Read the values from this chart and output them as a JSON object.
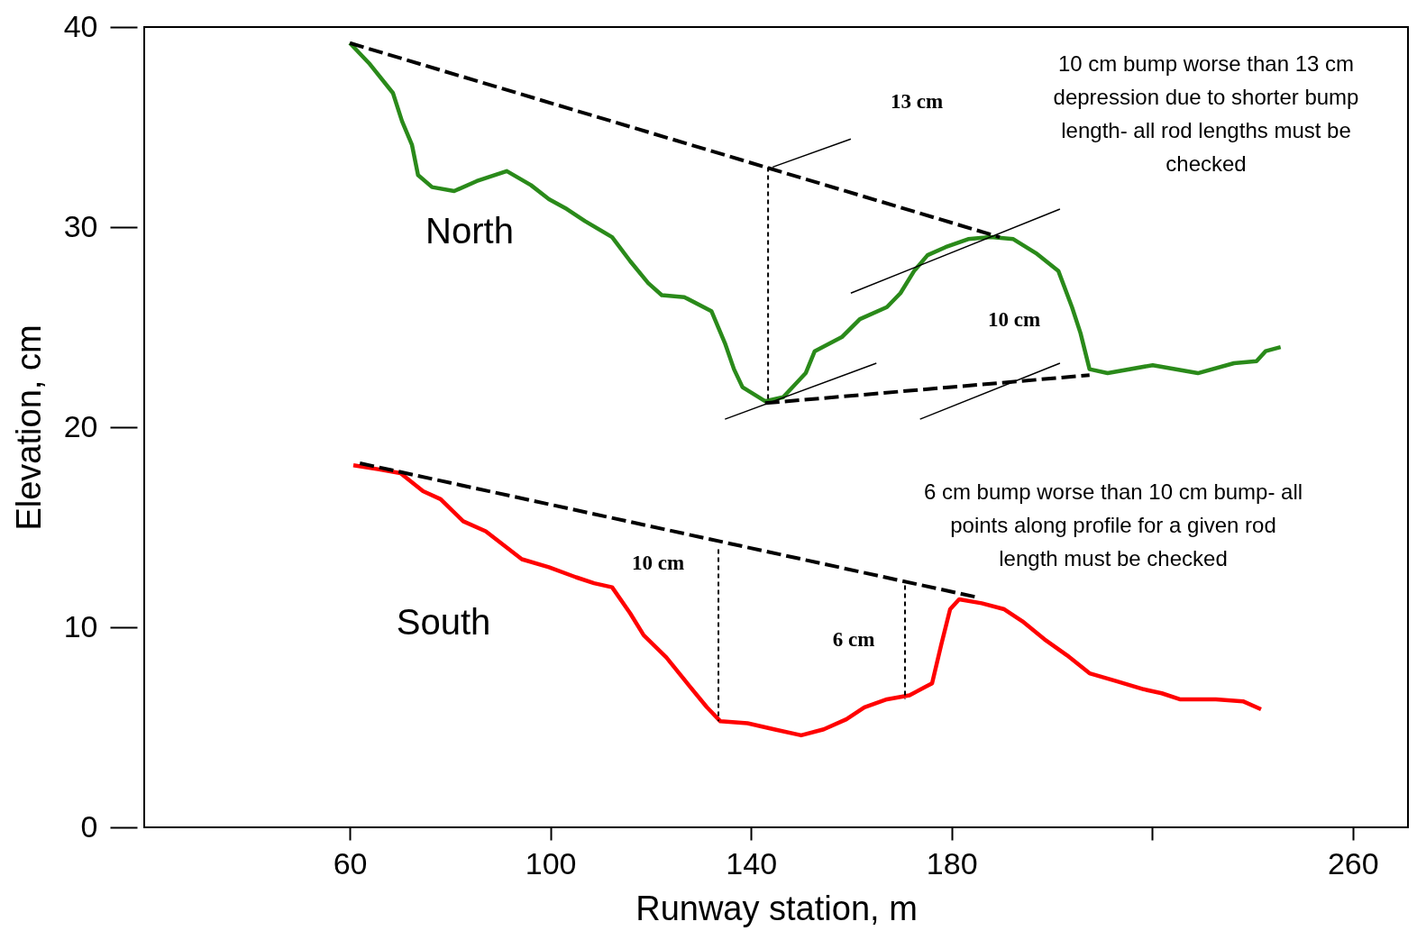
{
  "chart_data": {
    "type": "line",
    "xlabel": "Runway station, m",
    "ylabel": "Elevation, cm",
    "xlim": [
      19,
      271
    ],
    "ylim": [
      0,
      40
    ],
    "xticks": [
      60,
      100,
      140,
      180,
      {
        "value": 220,
        "label": null
      },
      260
    ],
    "yticks": [
      0,
      10,
      20,
      30,
      40
    ],
    "series": [
      {
        "name": "North",
        "color": "#2a8a1a",
        "x": [
          60,
          63.8,
          68.6,
          70.4,
          72.4,
          73.6,
          76.4,
          80.8,
          85.3,
          91.3,
          96.1,
          99.7,
          103.3,
          106.9,
          112.3,
          115.9,
          119.5,
          122.2,
          126.7,
          132.1,
          134.8,
          136.6,
          138.3,
          142.8,
          146.4,
          150.9,
          152.7,
          158.1,
          161.7,
          167.1,
          169.8,
          172.5,
          175.2,
          178.8,
          183.3,
          187.8,
          192.3,
          196.8,
          201.3,
          204,
          205.7,
          207.5,
          211.1,
          220.1,
          229.1,
          236.3,
          240.8,
          242.6,
          245.6
        ],
        "values": [
          39.2,
          38.2,
          36.7,
          35.3,
          34.1,
          32.6,
          32,
          31.8,
          32.3,
          32.8,
          32.1,
          31.4,
          30.9,
          30.3,
          29.5,
          28.3,
          27.2,
          26.6,
          26.5,
          25.8,
          24.2,
          22.9,
          22,
          21.3,
          21.5,
          22.7,
          23.8,
          24.5,
          25.4,
          26,
          26.7,
          27.8,
          28.6,
          29,
          29.4,
          29.5,
          29.4,
          28.7,
          27.8,
          26,
          24.7,
          22.9,
          22.7,
          23.1,
          22.7,
          23.2,
          23.3,
          23.8,
          24
        ]
      },
      {
        "name": "South",
        "color": "#ff0000",
        "x": [
          60.7,
          65.6,
          70.1,
          74.6,
          78.1,
          82.6,
          87.1,
          90.7,
          94.3,
          99.7,
          105.1,
          108.7,
          112.3,
          115.9,
          118.6,
          123.1,
          127.6,
          131.2,
          133.9,
          139.3,
          144.6,
          150,
          154.5,
          159,
          162.6,
          167.1,
          171.6,
          176.1,
          177.9,
          179.7,
          181.5,
          186,
          190.5,
          194.1,
          198.5,
          203,
          207.5,
          212.9,
          218.3,
          221.9,
          225.5,
          232.7,
          238.1,
          241.7
        ],
        "values": [
          18.1,
          17.9,
          17.7,
          16.8,
          16.4,
          15.3,
          14.8,
          14.1,
          13.4,
          13,
          12.5,
          12.2,
          12,
          10.7,
          9.6,
          8.5,
          7.1,
          6,
          5.3,
          5.2,
          4.9,
          4.6,
          4.9,
          5.4,
          6,
          6.4,
          6.6,
          7.2,
          9.1,
          10.9,
          11.4,
          11.2,
          10.9,
          10.3,
          9.4,
          8.6,
          7.7,
          7.3,
          6.9,
          6.7,
          6.4,
          6.4,
          6.3,
          5.9
        ]
      },
      {
        "color": "#000000",
        "line_style": "dashed",
        "x": [
          60,
          189.6
        ],
        "values": [
          39.2,
          29.5
        ]
      },
      {
        "color": "#000000",
        "line_style": "dashed",
        "x": [
          142.8,
          207.5
        ],
        "values": [
          21.2,
          22.6
        ]
      },
      {
        "color": "#000000",
        "line_style": "dashed",
        "x": [
          62,
          185.1
        ],
        "values": [
          18.2,
          11.5
        ]
      },
      {
        "color": "#000000",
        "line_style": "dotted",
        "x": [
          143.4,
          143.4
        ],
        "values": [
          33,
          21.2
        ]
      },
      {
        "color": "#000000",
        "line_style": "dotted",
        "x": [
          133.5,
          133.5
        ],
        "values": [
          13.9,
          5.3
        ]
      },
      {
        "color": "#000000",
        "line_style": "dotted",
        "x": [
          170.7,
          170.7
        ],
        "values": [
          12.1,
          6.4
        ]
      },
      {
        "color": "#000000",
        "line_style": "solid",
        "x": [
          144.3,
          159.9
        ],
        "values": [
          33,
          34.4
        ]
      },
      {
        "color": "#000000",
        "line_style": "solid",
        "x": [
          159.9,
          201.6
        ],
        "values": [
          26.7,
          30.9
        ]
      },
      {
        "color": "#000000",
        "line_style": "solid",
        "x": [
          134.8,
          165
        ],
        "values": [
          20.4,
          23.2
        ]
      },
      {
        "color": "#000000",
        "line_style": "solid",
        "x": [
          173.7,
          201.6
        ],
        "values": [
          20.4,
          23.2
        ]
      }
    ],
    "annotations": [
      "13 cm",
      "10 cm",
      "10 cm",
      "6 cm",
      "10 cm bump worse than 13 cm depression due to shorter bump length- all rod lengths must be checked",
      "6 cm bump worse than 10 cm bump- all points along profile for a given rod length must be checked"
    ]
  }
}
